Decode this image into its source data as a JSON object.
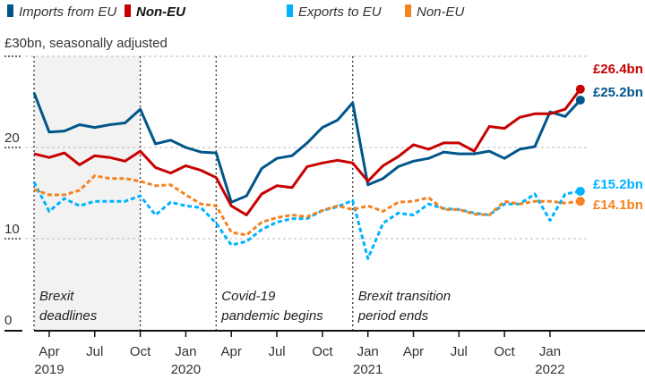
{
  "chart_data": {
    "type": "line",
    "title": "",
    "ylabel": "£30bn, seasonally adjusted",
    "ylim": [
      0,
      30
    ],
    "yticks": [
      "0",
      "10",
      "20"
    ],
    "grid": true,
    "legend_placement": "top",
    "x": [
      "2019-03",
      "2019-04",
      "2019-05",
      "2019-06",
      "2019-07",
      "2019-08",
      "2019-09",
      "2019-10",
      "2019-11",
      "2019-12",
      "2020-01",
      "2020-02",
      "2020-03",
      "2020-04",
      "2020-05",
      "2020-06",
      "2020-07",
      "2020-08",
      "2020-09",
      "2020-10",
      "2020-11",
      "2020-12",
      "2021-01",
      "2021-02",
      "2021-03",
      "2021-04",
      "2021-05",
      "2021-06",
      "2021-07",
      "2021-08",
      "2021-09",
      "2021-10",
      "2021-11",
      "2021-12",
      "2022-01",
      "2022-02",
      "2022-03"
    ],
    "xticks": [
      {
        "month": "Apr",
        "year": "2019",
        "x": "2019-04"
      },
      {
        "month": "Jul",
        "year": "",
        "x": "2019-07"
      },
      {
        "month": "Oct",
        "year": "",
        "x": "2019-10"
      },
      {
        "month": "Jan",
        "year": "2020",
        "x": "2020-01"
      },
      {
        "month": "Apr",
        "year": "",
        "x": "2020-04"
      },
      {
        "month": "Jul",
        "year": "",
        "x": "2020-07"
      },
      {
        "month": "Oct",
        "year": "",
        "x": "2020-10"
      },
      {
        "month": "Jan",
        "year": "2021",
        "x": "2021-01"
      },
      {
        "month": "Apr",
        "year": "",
        "x": "2021-04"
      },
      {
        "month": "Jul",
        "year": "",
        "x": "2021-07"
      },
      {
        "month": "Oct",
        "year": "",
        "x": "2021-10"
      },
      {
        "month": "Jan",
        "year": "2022",
        "x": "2022-01"
      }
    ],
    "legend": [
      {
        "label": "Imports from EU",
        "color": "#005689",
        "bold": false
      },
      {
        "label": "Non-EU",
        "color": "#c70000",
        "bold": true
      },
      {
        "label": "Exports to EU",
        "color": "#00b2ff",
        "bold": false
      },
      {
        "label": "Non-EU",
        "color": "#f5821f",
        "bold": false
      }
    ],
    "series": [
      {
        "name": "Imports from EU",
        "color": "#005689",
        "dashed": false,
        "end_label": "£25.2bn",
        "values": [
          26.0,
          21.7,
          21.8,
          22.5,
          22.2,
          22.5,
          22.7,
          24.2,
          20.4,
          20.8,
          20.0,
          19.5,
          19.4,
          14.0,
          14.7,
          17.7,
          18.8,
          19.1,
          20.5,
          22.2,
          23.0,
          24.9,
          15.9,
          16.6,
          17.9,
          18.5,
          18.8,
          19.5,
          19.3,
          19.3,
          19.6,
          18.8,
          19.8,
          20.1,
          23.9,
          23.4,
          25.2
        ]
      },
      {
        "name": "Imports Non-EU",
        "color": "#c70000",
        "dashed": false,
        "end_label": "£26.4bn",
        "values": [
          19.3,
          18.9,
          19.4,
          18.1,
          19.1,
          18.9,
          18.5,
          19.6,
          17.8,
          17.2,
          18.0,
          17.5,
          16.7,
          13.6,
          12.6,
          14.9,
          15.8,
          15.6,
          17.9,
          18.3,
          18.6,
          18.3,
          16.3,
          18.0,
          19.0,
          20.3,
          19.8,
          20.5,
          20.5,
          19.6,
          22.3,
          22.1,
          23.3,
          23.7,
          23.7,
          24.2,
          26.4
        ]
      },
      {
        "name": "Exports to EU",
        "color": "#00b2ff",
        "dashed": true,
        "end_label": "£15.2bn",
        "values": [
          16.2,
          13.0,
          14.4,
          13.6,
          14.1,
          14.1,
          14.1,
          14.7,
          12.6,
          14.0,
          13.6,
          13.4,
          11.7,
          9.3,
          9.7,
          11.0,
          11.8,
          12.2,
          12.2,
          13.1,
          13.5,
          14.2,
          7.8,
          11.7,
          12.8,
          12.6,
          13.8,
          13.3,
          13.2,
          12.8,
          12.6,
          13.8,
          13.8,
          14.9,
          12.0,
          14.9,
          15.2
        ]
      },
      {
        "name": "Exports Non-EU",
        "color": "#f5821f",
        "dashed": true,
        "end_label": "£14.1bn",
        "values": [
          15.4,
          14.8,
          14.8,
          15.3,
          16.9,
          16.6,
          16.6,
          16.3,
          15.8,
          15.9,
          14.8,
          13.8,
          13.6,
          10.7,
          10.4,
          11.8,
          12.3,
          12.6,
          12.4,
          13.1,
          13.6,
          13.2,
          13.6,
          13.0,
          14.0,
          14.1,
          14.5,
          13.2,
          13.2,
          12.7,
          12.6,
          14.1,
          13.8,
          14.1,
          14.1,
          13.9,
          14.1
        ]
      }
    ],
    "annotations": [
      {
        "at": "2019-03",
        "lines": [
          "Brexit",
          "deadlines"
        ],
        "shaded_until": "2019-10"
      },
      {
        "at": "2020-03",
        "lines": [
          "Covid-19",
          "pandemic begins"
        ]
      },
      {
        "at": "2020-12",
        "lines": [
          "Brexit transition",
          "period ends"
        ]
      }
    ]
  }
}
